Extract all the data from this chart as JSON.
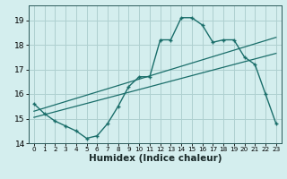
{
  "xlabel": "Humidex (Indice chaleur)",
  "bg_color": "#d4eeee",
  "grid_color": "#aed0d0",
  "line_color": "#1a6e6a",
  "xlim": [
    -0.5,
    23.5
  ],
  "ylim": [
    14,
    19.6
  ],
  "yticks": [
    14,
    15,
    16,
    17,
    18,
    19
  ],
  "xticks": [
    0,
    1,
    2,
    3,
    4,
    5,
    6,
    7,
    8,
    9,
    10,
    11,
    12,
    13,
    14,
    15,
    16,
    17,
    18,
    19,
    20,
    21,
    22,
    23
  ],
  "curve_x": [
    0,
    1,
    2,
    3,
    4,
    5,
    6,
    7,
    8,
    9,
    10,
    11,
    12,
    13,
    14,
    15,
    16,
    17,
    18,
    19,
    20,
    21,
    22,
    23
  ],
  "curve_y": [
    15.6,
    15.2,
    14.9,
    14.7,
    14.5,
    14.2,
    14.3,
    14.8,
    15.5,
    16.3,
    16.7,
    16.7,
    18.2,
    18.2,
    19.1,
    19.1,
    18.8,
    18.1,
    18.2,
    18.2,
    17.5,
    17.2,
    16.0,
    14.8
  ],
  "line1_x": [
    0,
    23
  ],
  "line1_y": [
    15.3,
    18.3
  ],
  "line2_x": [
    0,
    23
  ],
  "line2_y": [
    15.05,
    17.65
  ]
}
